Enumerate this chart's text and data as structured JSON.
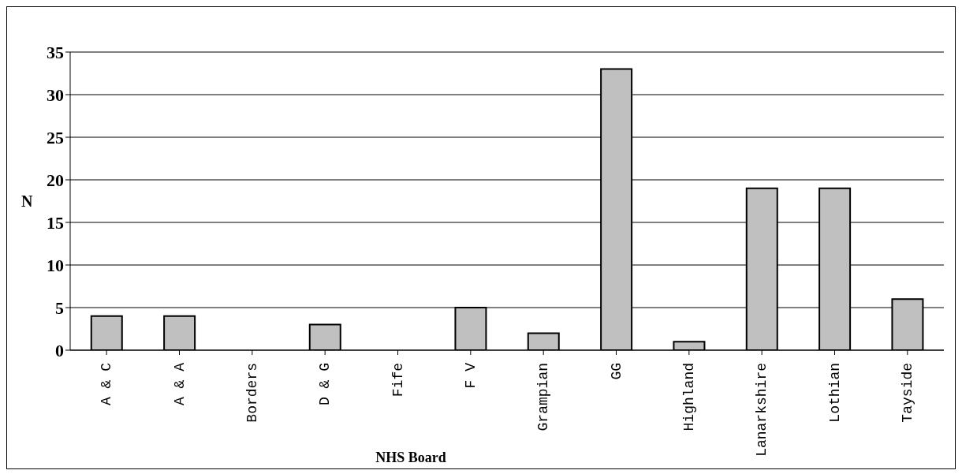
{
  "chart_data": {
    "type": "bar",
    "categories": [
      "A & C",
      "A & A",
      "Borders",
      "D & G",
      "Fife",
      "F V",
      "Grampian",
      "GG",
      "Highland",
      "Lanarkshire",
      "Lothian",
      "Tayside"
    ],
    "values": [
      4,
      4,
      0,
      3,
      0,
      5,
      2,
      33,
      1,
      19,
      19,
      6
    ],
    "color": "#c0c0c0",
    "xlabel": "NHS Board",
    "ylabel": "N",
    "ylim": [
      0,
      35
    ],
    "yticks": [
      0,
      5,
      10,
      15,
      20,
      25,
      30,
      35
    ],
    "grid": "y"
  }
}
